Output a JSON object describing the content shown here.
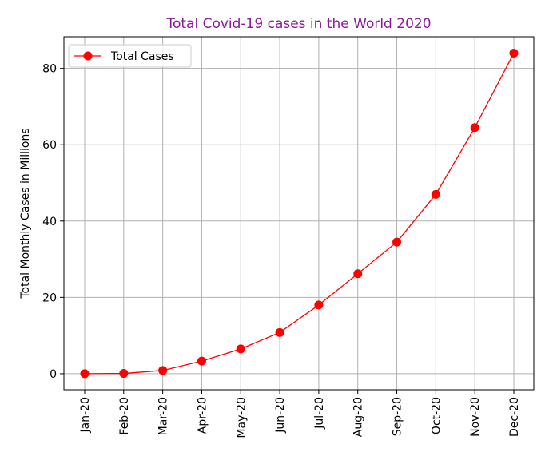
{
  "chart_data": {
    "type": "line",
    "title": "Total Covid-19 cases in the World 2020",
    "title_color": "#8b1a9b",
    "xlabel": "",
    "ylabel": "Total Monthly Cases in Millions",
    "categories": [
      "Jan-20",
      "Feb-20",
      "Mar-20",
      "Apr-20",
      "May-20",
      "Jun-20",
      "Jul-20",
      "Aug-20",
      "Sep-20",
      "Oct-20",
      "Nov-20",
      "Dec-20"
    ],
    "series": [
      {
        "name": "Total Cases",
        "color": "#ff0000",
        "values": [
          0.01,
          0.08,
          0.86,
          3.3,
          6.5,
          10.8,
          18.0,
          26.2,
          34.5,
          47.0,
          64.5,
          84.0
        ]
      }
    ],
    "ylim": [
      -4.2,
      88.3
    ],
    "yticks": [
      0,
      20,
      40,
      60,
      80
    ],
    "grid": true,
    "legend_position": "upper-left",
    "marker": "circle"
  }
}
